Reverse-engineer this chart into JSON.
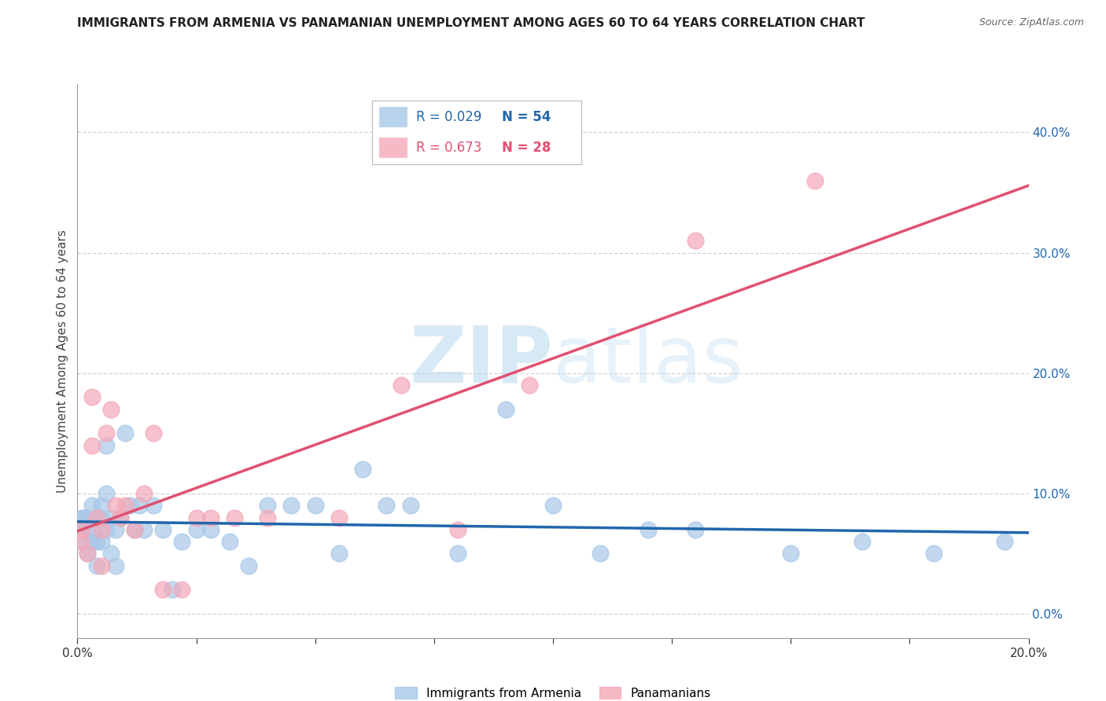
{
  "title": "IMMIGRANTS FROM ARMENIA VS PANAMANIAN UNEMPLOYMENT AMONG AGES 60 TO 64 YEARS CORRELATION CHART",
  "source": "Source: ZipAtlas.com",
  "ylabel": "Unemployment Among Ages 60 to 64 years",
  "legend_label_blue": "Immigrants from Armenia",
  "legend_label_pink": "Panamanians",
  "R_blue": 0.029,
  "N_blue": 54,
  "R_pink": 0.673,
  "N_pink": 28,
  "color_blue": "#a8c8e8",
  "color_pink": "#f4a8b8",
  "line_color_blue": "#2166ac",
  "line_color_pink": "#e05070",
  "watermark": "ZIPatlas",
  "xlim": [
    0.0,
    0.2
  ],
  "ylim": [
    -0.02,
    0.44
  ],
  "yticks": [
    0.0,
    0.1,
    0.2,
    0.3,
    0.4
  ],
  "blue_x": [
    0.0008,
    0.001,
    0.0012,
    0.0015,
    0.002,
    0.002,
    0.002,
    0.003,
    0.003,
    0.003,
    0.004,
    0.004,
    0.004,
    0.005,
    0.005,
    0.005,
    0.006,
    0.006,
    0.006,
    0.007,
    0.007,
    0.008,
    0.008,
    0.009,
    0.01,
    0.011,
    0.012,
    0.013,
    0.014,
    0.016,
    0.018,
    0.02,
    0.022,
    0.025,
    0.028,
    0.032,
    0.036,
    0.04,
    0.045,
    0.05,
    0.055,
    0.06,
    0.065,
    0.07,
    0.08,
    0.09,
    0.1,
    0.11,
    0.12,
    0.13,
    0.15,
    0.165,
    0.18,
    0.195
  ],
  "blue_y": [
    0.07,
    0.08,
    0.06,
    0.08,
    0.08,
    0.07,
    0.05,
    0.09,
    0.07,
    0.06,
    0.08,
    0.06,
    0.04,
    0.09,
    0.08,
    0.06,
    0.14,
    0.1,
    0.07,
    0.08,
    0.05,
    0.07,
    0.04,
    0.08,
    0.15,
    0.09,
    0.07,
    0.09,
    0.07,
    0.09,
    0.07,
    0.02,
    0.06,
    0.07,
    0.07,
    0.06,
    0.04,
    0.09,
    0.09,
    0.09,
    0.05,
    0.12,
    0.09,
    0.09,
    0.05,
    0.17,
    0.09,
    0.05,
    0.07,
    0.07,
    0.05,
    0.06,
    0.05,
    0.06
  ],
  "pink_x": [
    0.0008,
    0.001,
    0.002,
    0.003,
    0.003,
    0.004,
    0.005,
    0.005,
    0.006,
    0.007,
    0.008,
    0.009,
    0.01,
    0.012,
    0.014,
    0.016,
    0.018,
    0.022,
    0.025,
    0.028,
    0.033,
    0.04,
    0.055,
    0.068,
    0.08,
    0.095,
    0.13,
    0.155
  ],
  "pink_y": [
    0.06,
    0.07,
    0.05,
    0.18,
    0.14,
    0.08,
    0.07,
    0.04,
    0.15,
    0.17,
    0.09,
    0.08,
    0.09,
    0.07,
    0.1,
    0.15,
    0.02,
    0.02,
    0.08,
    0.08,
    0.08,
    0.08,
    0.08,
    0.19,
    0.07,
    0.19,
    0.31,
    0.36
  ]
}
